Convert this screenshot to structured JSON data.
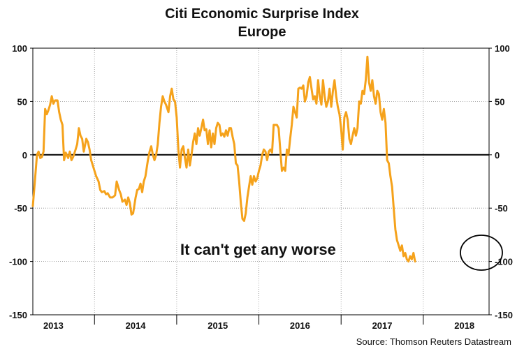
{
  "chart_data": {
    "type": "line",
    "title": "Citi Economic Surprise Index",
    "subtitle": "Europe",
    "source": "Source: Thomson Reuters Datastream",
    "annotation": "It can't get any worse",
    "ylim": [
      -150,
      100
    ],
    "yticks": [
      100,
      50,
      0,
      -50,
      -100,
      -150
    ],
    "xlim": [
      2012.75,
      2018.3
    ],
    "year_labels": [
      {
        "label": "2013",
        "x": 2013.0
      },
      {
        "label": "2014",
        "x": 2014.0
      },
      {
        "label": "2015",
        "x": 2015.0
      },
      {
        "label": "2016",
        "x": 2016.0
      },
      {
        "label": "2017",
        "x": 2017.0
      },
      {
        "label": "2018",
        "x": 2018.0
      }
    ],
    "year_boundaries": [
      2013.5,
      2014.5,
      2015.5,
      2016.5,
      2017.5
    ],
    "grid": true,
    "series": [
      {
        "color": "#f5a21b",
        "points": [
          [
            2012.75,
            -48
          ],
          [
            2012.78,
            -20
          ],
          [
            2012.8,
            0
          ],
          [
            2012.82,
            3
          ],
          [
            2012.84,
            -3
          ],
          [
            2012.86,
            -2
          ],
          [
            2012.88,
            3
          ],
          [
            2012.9,
            43
          ],
          [
            2012.92,
            38
          ],
          [
            2012.94,
            42
          ],
          [
            2012.96,
            47
          ],
          [
            2012.98,
            55
          ],
          [
            2013.0,
            48
          ],
          [
            2013.02,
            51
          ],
          [
            2013.05,
            51
          ],
          [
            2013.07,
            40
          ],
          [
            2013.09,
            33
          ],
          [
            2013.11,
            28
          ],
          [
            2013.13,
            -5
          ],
          [
            2013.15,
            2
          ],
          [
            2013.18,
            -3
          ],
          [
            2013.2,
            3
          ],
          [
            2013.22,
            -5
          ],
          [
            2013.24,
            -2
          ],
          [
            2013.27,
            5
          ],
          [
            2013.29,
            10
          ],
          [
            2013.31,
            25
          ],
          [
            2013.33,
            18
          ],
          [
            2013.35,
            15
          ],
          [
            2013.37,
            3
          ],
          [
            2013.4,
            15
          ],
          [
            2013.42,
            12
          ],
          [
            2013.44,
            5
          ],
          [
            2013.46,
            -5
          ],
          [
            2013.48,
            -10
          ],
          [
            2013.5,
            -15
          ],
          [
            2013.52,
            -20
          ],
          [
            2013.55,
            -25
          ],
          [
            2013.57,
            -33
          ],
          [
            2013.59,
            -35
          ],
          [
            2013.62,
            -34
          ],
          [
            2013.64,
            -37
          ],
          [
            2013.66,
            -36
          ],
          [
            2013.69,
            -40
          ],
          [
            2013.72,
            -40
          ],
          [
            2013.75,
            -38
          ],
          [
            2013.77,
            -25
          ],
          [
            2013.8,
            -33
          ],
          [
            2013.82,
            -37
          ],
          [
            2013.84,
            -44
          ],
          [
            2013.87,
            -42
          ],
          [
            2013.89,
            -47
          ],
          [
            2013.91,
            -40
          ],
          [
            2013.93,
            -45
          ],
          [
            2013.95,
            -56
          ],
          [
            2013.97,
            -55
          ],
          [
            2014.0,
            -40
          ],
          [
            2014.02,
            -33
          ],
          [
            2014.04,
            -32
          ],
          [
            2014.06,
            -27
          ],
          [
            2014.08,
            -35
          ],
          [
            2014.1,
            -25
          ],
          [
            2014.12,
            -20
          ],
          [
            2014.15,
            -5
          ],
          [
            2014.17,
            3
          ],
          [
            2014.19,
            8
          ],
          [
            2014.21,
            0
          ],
          [
            2014.23,
            -5
          ],
          [
            2014.25,
            0
          ],
          [
            2014.27,
            10
          ],
          [
            2014.29,
            30
          ],
          [
            2014.31,
            45
          ],
          [
            2014.33,
            55
          ],
          [
            2014.35,
            50
          ],
          [
            2014.37,
            47
          ],
          [
            2014.4,
            40
          ],
          [
            2014.42,
            55
          ],
          [
            2014.44,
            62
          ],
          [
            2014.46,
            52
          ],
          [
            2014.48,
            50
          ],
          [
            2014.5,
            35
          ],
          [
            2014.52,
            5
          ],
          [
            2014.54,
            -12
          ],
          [
            2014.56,
            5
          ],
          [
            2014.58,
            8
          ],
          [
            2014.6,
            -3
          ],
          [
            2014.62,
            -12
          ],
          [
            2014.64,
            5
          ],
          [
            2014.66,
            -10
          ],
          [
            2014.68,
            0
          ],
          [
            2014.7,
            12
          ],
          [
            2014.72,
            20
          ],
          [
            2014.74,
            10
          ],
          [
            2014.76,
            25
          ],
          [
            2014.78,
            18
          ],
          [
            2014.8,
            25
          ],
          [
            2014.82,
            33
          ],
          [
            2014.84,
            23
          ],
          [
            2014.86,
            24
          ],
          [
            2014.88,
            10
          ],
          [
            2014.9,
            23
          ],
          [
            2014.92,
            7
          ],
          [
            2014.94,
            20
          ],
          [
            2014.96,
            10
          ],
          [
            2014.98,
            25
          ],
          [
            2015.0,
            30
          ],
          [
            2015.02,
            28
          ],
          [
            2015.04,
            18
          ],
          [
            2015.06,
            20
          ],
          [
            2015.08,
            17
          ],
          [
            2015.1,
            23
          ],
          [
            2015.12,
            18
          ],
          [
            2015.14,
            25
          ],
          [
            2015.16,
            25
          ],
          [
            2015.18,
            17
          ],
          [
            2015.2,
            10
          ],
          [
            2015.22,
            -8
          ],
          [
            2015.24,
            -10
          ],
          [
            2015.26,
            -25
          ],
          [
            2015.28,
            -45
          ],
          [
            2015.3,
            -60
          ],
          [
            2015.32,
            -62
          ],
          [
            2015.34,
            -55
          ],
          [
            2015.36,
            -40
          ],
          [
            2015.38,
            -30
          ],
          [
            2015.4,
            -20
          ],
          [
            2015.42,
            -28
          ],
          [
            2015.44,
            -20
          ],
          [
            2015.46,
            -25
          ],
          [
            2015.48,
            -22
          ],
          [
            2015.5,
            -15
          ],
          [
            2015.52,
            -10
          ],
          [
            2015.54,
            0
          ],
          [
            2015.56,
            5
          ],
          [
            2015.58,
            3
          ],
          [
            2015.6,
            -5
          ],
          [
            2015.62,
            3
          ],
          [
            2015.64,
            5
          ],
          [
            2015.66,
            2
          ],
          [
            2015.68,
            28
          ],
          [
            2015.7,
            28
          ],
          [
            2015.72,
            28
          ],
          [
            2015.74,
            25
          ],
          [
            2015.76,
            5
          ],
          [
            2015.78,
            -15
          ],
          [
            2015.8,
            -12
          ],
          [
            2015.82,
            -15
          ],
          [
            2015.84,
            5
          ],
          [
            2015.86,
            0
          ],
          [
            2015.88,
            15
          ],
          [
            2015.9,
            28
          ],
          [
            2015.92,
            45
          ],
          [
            2015.94,
            40
          ],
          [
            2015.96,
            35
          ],
          [
            2015.98,
            62
          ],
          [
            2016.0,
            63
          ],
          [
            2016.02,
            62
          ],
          [
            2016.04,
            65
          ],
          [
            2016.06,
            50
          ],
          [
            2016.08,
            55
          ],
          [
            2016.1,
            68
          ],
          [
            2016.12,
            73
          ],
          [
            2016.14,
            62
          ],
          [
            2016.16,
            52
          ],
          [
            2016.18,
            55
          ],
          [
            2016.2,
            48
          ],
          [
            2016.22,
            70
          ],
          [
            2016.24,
            55
          ],
          [
            2016.26,
            47
          ],
          [
            2016.28,
            70
          ],
          [
            2016.3,
            55
          ],
          [
            2016.32,
            45
          ],
          [
            2016.34,
            50
          ],
          [
            2016.36,
            62
          ],
          [
            2016.38,
            45
          ],
          [
            2016.4,
            60
          ],
          [
            2016.42,
            70
          ],
          [
            2016.44,
            55
          ],
          [
            2016.46,
            45
          ],
          [
            2016.48,
            38
          ],
          [
            2016.5,
            25
          ],
          [
            2016.52,
            5
          ],
          [
            2016.54,
            35
          ],
          [
            2016.56,
            40
          ],
          [
            2016.58,
            33
          ],
          [
            2016.6,
            15
          ],
          [
            2016.62,
            10
          ],
          [
            2016.64,
            18
          ],
          [
            2016.66,
            25
          ],
          [
            2016.68,
            18
          ],
          [
            2016.7,
            25
          ],
          [
            2016.72,
            50
          ],
          [
            2016.74,
            48
          ],
          [
            2016.76,
            60
          ],
          [
            2016.78,
            57
          ],
          [
            2016.8,
            70
          ],
          [
            2016.82,
            92
          ],
          [
            2016.84,
            68
          ],
          [
            2016.86,
            60
          ],
          [
            2016.88,
            70
          ],
          [
            2016.9,
            55
          ],
          [
            2016.92,
            48
          ],
          [
            2016.94,
            60
          ],
          [
            2016.96,
            57
          ],
          [
            2016.98,
            40
          ],
          [
            2017.0,
            33
          ],
          [
            2017.02,
            43
          ],
          [
            2017.04,
            30
          ],
          [
            2017.06,
            -5
          ],
          [
            2017.08,
            -8
          ],
          [
            2017.1,
            -20
          ],
          [
            2017.12,
            -30
          ],
          [
            2017.14,
            -50
          ],
          [
            2017.16,
            -70
          ],
          [
            2017.18,
            -80
          ],
          [
            2017.2,
            -85
          ],
          [
            2017.22,
            -90
          ],
          [
            2017.24,
            -85
          ],
          [
            2017.26,
            -95
          ],
          [
            2017.28,
            -92
          ],
          [
            2017.3,
            -98
          ],
          [
            2017.32,
            -100
          ],
          [
            2017.34,
            -95
          ],
          [
            2017.36,
            -98
          ],
          [
            2017.38,
            -92
          ],
          [
            2017.4,
            -100
          ]
        ]
      }
    ]
  }
}
